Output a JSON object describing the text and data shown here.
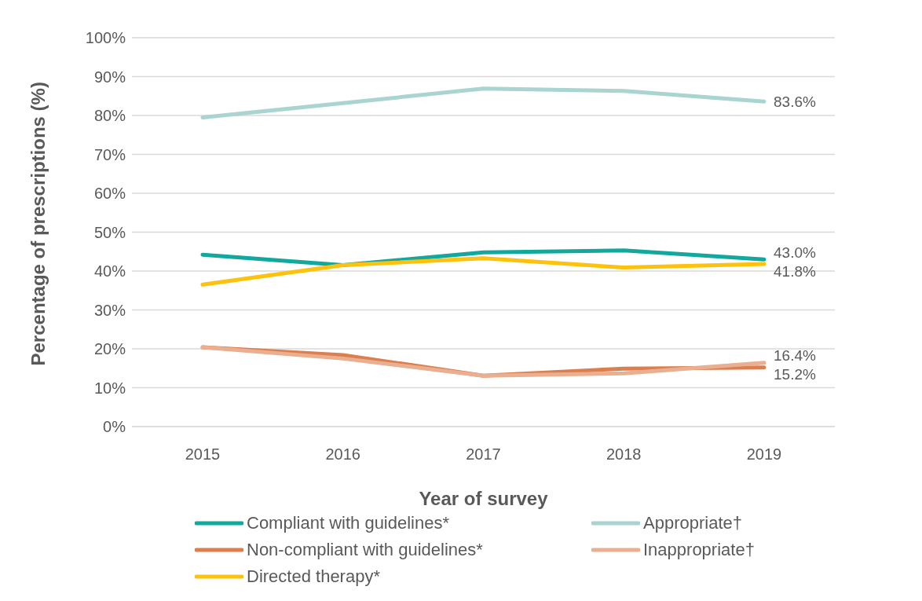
{
  "chart_data": {
    "type": "line",
    "xlabel": "Year of survey",
    "ylabel": "Percentage of prescriptions (%)",
    "categories": [
      "2015",
      "2016",
      "2017",
      "2018",
      "2019"
    ],
    "series": [
      {
        "name": "Compliant with guidelines*",
        "color": "#13a89e",
        "values": [
          44.2,
          41.5,
          44.8,
          45.3,
          43.0
        ],
        "value_labels": [
          null,
          null,
          null,
          null,
          "43.0%"
        ]
      },
      {
        "name": "Appropriate†",
        "color": "#aad4cf",
        "values": [
          79.5,
          83.2,
          86.9,
          86.3,
          83.6
        ],
        "value_labels": [
          null,
          null,
          null,
          null,
          "83.6%"
        ]
      },
      {
        "name": "Non-compliant with guidelines*",
        "color": "#dc7f4f",
        "values": [
          20.4,
          18.4,
          13.1,
          14.9,
          15.2
        ],
        "value_labels": [
          null,
          null,
          null,
          null,
          "15.2%"
        ]
      },
      {
        "name": "Inappropriate†",
        "color": "#eaae90",
        "values": [
          20.4,
          17.5,
          13.1,
          13.7,
          16.4
        ],
        "value_labels": [
          null,
          null,
          null,
          null,
          "16.4%"
        ]
      },
      {
        "name": "Directed therapy*",
        "color": "#fdc20e",
        "values": [
          36.5,
          41.5,
          43.3,
          40.9,
          41.8
        ],
        "value_labels": [
          null,
          null,
          null,
          null,
          "41.8%"
        ]
      }
    ],
    "ylim": [
      0,
      100
    ],
    "yticks": [
      {
        "value": 0,
        "label": "0%"
      },
      {
        "value": 10,
        "label": "10%"
      },
      {
        "value": 20,
        "label": "20%"
      },
      {
        "value": 30,
        "label": "30%"
      },
      {
        "value": 40,
        "label": "40%"
      },
      {
        "value": 50,
        "label": "50%"
      },
      {
        "value": 60,
        "label": "60%"
      },
      {
        "value": 70,
        "label": "70%"
      },
      {
        "value": 80,
        "label": "80%"
      },
      {
        "value": 90,
        "label": "90%"
      },
      {
        "value": 100,
        "label": "100%"
      }
    ],
    "grid": "y",
    "legend": "bottom",
    "marker": "none",
    "line_style": "solid"
  }
}
